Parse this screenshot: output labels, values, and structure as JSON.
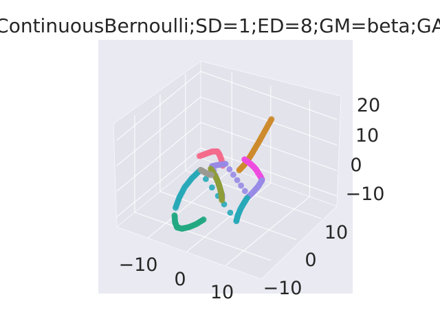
{
  "chart_data": {
    "type": "scatter3d",
    "title": "ContinuousBernoulli;SD=1;ED=8;GM=beta;GA",
    "xlabel": "",
    "ylabel": "",
    "zlabel": "",
    "x_ticks": [
      "−10",
      "0",
      "10"
    ],
    "y_ticks": [
      "10",
      "0",
      "−10"
    ],
    "z_ticks": [
      "20",
      "10",
      "0",
      "−10"
    ],
    "xlim": [
      -16,
      17
    ],
    "ylim": [
      -17,
      18
    ],
    "zlim": [
      -14,
      24
    ],
    "grid": true,
    "background": "#eaeaf2",
    "series": [
      {
        "color": "#cd8b2e",
        "points": [
          [
            -14.0,
            -1.5,
            13.4
          ],
          [
            -12.2,
            -1.5,
            11.7
          ],
          [
            -10.4,
            -1.5,
            9.9
          ],
          [
            -8.6,
            -1.5,
            8.2
          ],
          [
            -6.8,
            -1.5,
            6.6
          ],
          [
            -5.0,
            -1.5,
            5.2
          ],
          [
            -3.1,
            -1.5,
            4.2
          ],
          [
            -1.3,
            -1.5,
            3.8
          ]
        ]
      },
      {
        "color": "#f46c8c",
        "points": [
          [
            -0.5,
            2.2,
            4.2
          ],
          [
            -0.3,
            2.4,
            6.5
          ],
          [
            0.2,
            2.6,
            8.9
          ],
          [
            1.0,
            2.6,
            10.8
          ],
          [
            2.6,
            2.8,
            12.0
          ],
          [
            4.9,
            2.9,
            13.0
          ],
          [
            7.4,
            3.0,
            14.0
          ]
        ]
      },
      {
        "color": "#ee4be0",
        "points": [
          [
            -12.1,
            -0.3,
            -9.4
          ],
          [
            -11.5,
            -0.3,
            -7.7
          ],
          [
            -10.7,
            -0.3,
            -5.8
          ],
          [
            -9.9,
            -0.3,
            -3.8
          ],
          [
            -8.9,
            -0.3,
            -1.8
          ],
          [
            -7.7,
            -0.3,
            0.3
          ],
          [
            -6.5,
            -0.3,
            2.2
          ],
          [
            -5.2,
            -0.3,
            4.2
          ]
        ]
      },
      {
        "color": "#9889e6",
        "points": [
          [
            -12.1,
            -0.3,
            -9.6
          ],
          [
            -10.6,
            -0.3,
            -10.8
          ],
          [
            -8.8,
            -0.3,
            -11.4
          ],
          [
            -6.9,
            -0.3,
            -11.7
          ],
          [
            -1.6,
            2.2,
            4.0
          ],
          [
            0.5,
            2.4,
            5.3
          ],
          [
            3.1,
            2.6,
            6.8
          ],
          [
            -0.3,
            2.3,
            -6.8
          ],
          [
            -0.4,
            2.3,
            -8.3
          ]
        ]
      },
      {
        "color": "#28a8b8",
        "points": [
          [
            -6.3,
            -0.3,
            -11.8
          ],
          [
            -4.9,
            -0.3,
            -12.8
          ],
          [
            -3.6,
            -0.3,
            -14.0
          ],
          [
            -2.6,
            -0.3,
            -15.6
          ],
          [
            -2.0,
            -0.3,
            -17.4
          ],
          [
            5.5,
            4.2,
            6.1
          ],
          [
            8.4,
            4.3,
            5.5
          ],
          [
            11.1,
            4.4,
            4.1
          ],
          [
            13.1,
            4.5,
            1.6
          ],
          [
            14.4,
            4.6,
            -1.4
          ]
        ]
      },
      {
        "color": "#23a882",
        "points": [
          [
            14.8,
            4.6,
            -4.1
          ],
          [
            14.6,
            4.6,
            -7.0
          ],
          [
            13.8,
            4.6,
            -9.6
          ],
          [
            12.0,
            4.5,
            -11.5
          ],
          [
            9.5,
            4.4,
            -12.9
          ],
          [
            6.8,
            4.3,
            -13.9
          ],
          [
            4.0,
            4.2,
            -14.3
          ]
        ]
      },
      {
        "color": "#8e9d3a",
        "points": [
          [
            3.3,
            2.8,
            5.8
          ],
          [
            2.3,
            2.7,
            3.2
          ],
          [
            1.4,
            2.6,
            0.6
          ],
          [
            0.6,
            2.5,
            -2.3
          ],
          [
            0.1,
            2.4,
            -5.0
          ],
          [
            -0.1,
            2.3,
            -6.4
          ],
          [
            -0.3,
            2.3,
            -9.2
          ]
        ]
      },
      {
        "color": "#9a9a92",
        "points": [
          [
            7.0,
            3.0,
            8.3
          ],
          [
            6.1,
            3.0,
            7.0
          ],
          [
            5.1,
            2.9,
            5.6
          ],
          [
            4.1,
            2.8,
            4.2
          ],
          [
            3.2,
            2.7,
            3.4
          ]
        ]
      }
    ]
  }
}
